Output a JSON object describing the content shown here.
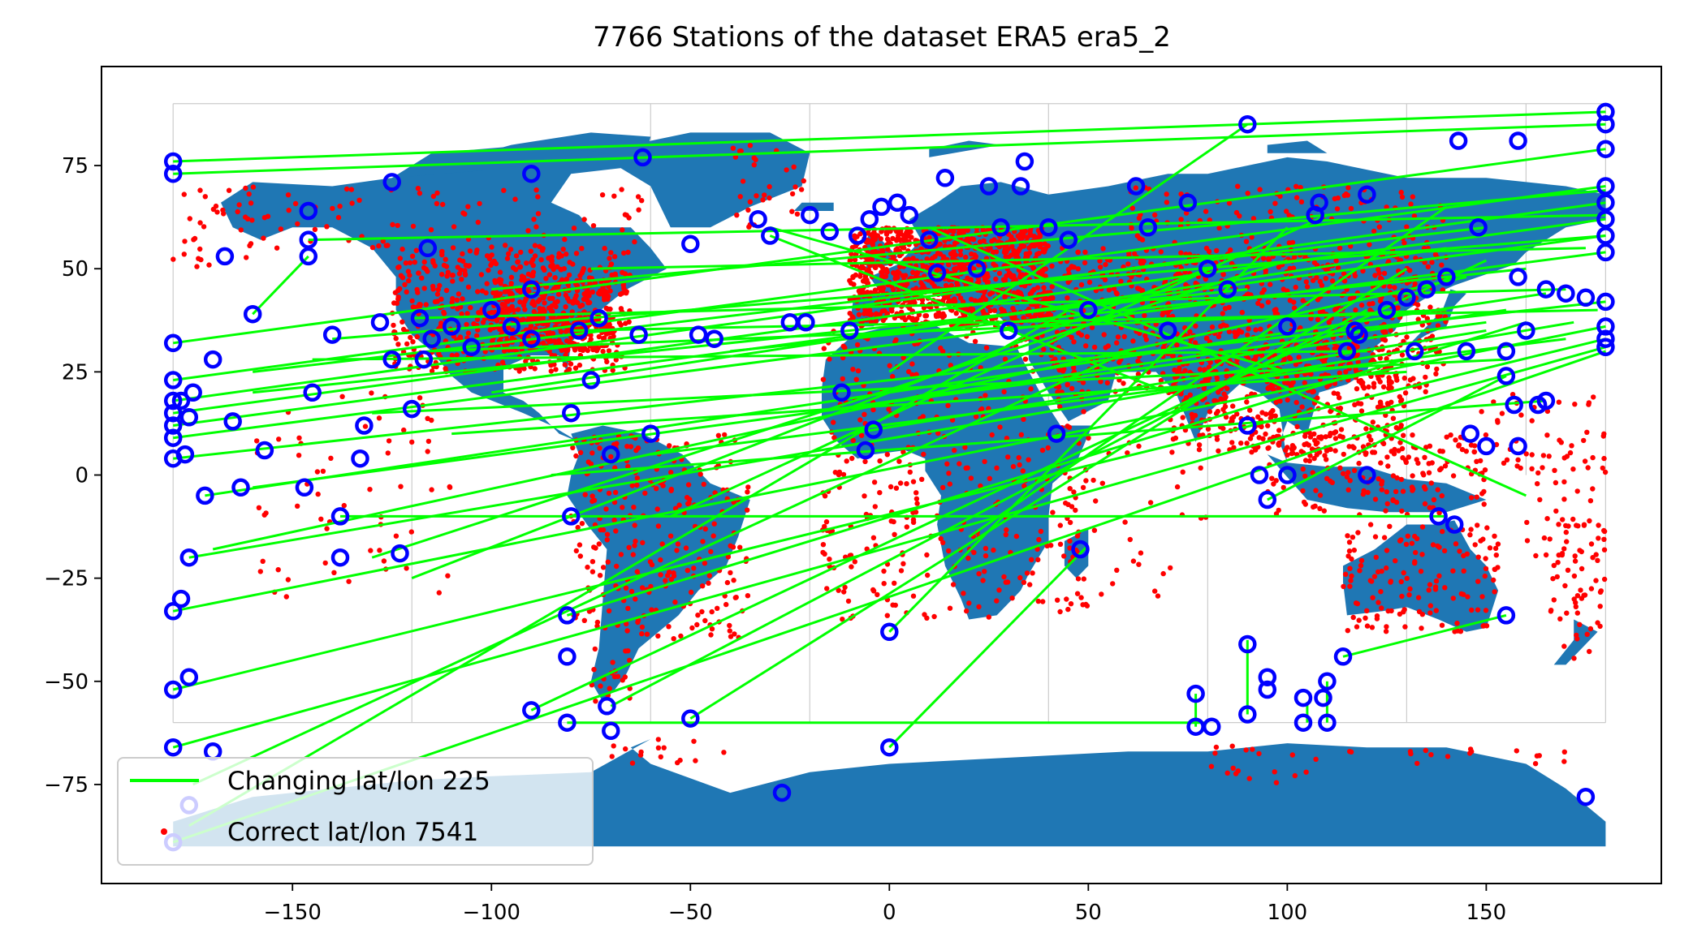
{
  "chart_data": {
    "type": "scatter",
    "title": "7766 Stations of the dataset ERA5 era5_2",
    "xlabel": "",
    "ylabel": "",
    "xlim": [
      -198,
      194
    ],
    "ylim": [
      -99,
      99
    ],
    "xticks": [
      -150,
      -100,
      -50,
      0,
      50,
      100,
      150
    ],
    "yticks": [
      -75,
      -50,
      -25,
      0,
      25,
      50,
      75
    ],
    "xtick_labels": [
      "−150",
      "−100",
      "−50",
      "0",
      "50",
      "100",
      "150"
    ],
    "ytick_labels": [
      "−75",
      "−50",
      "−25",
      "0",
      "25",
      "50",
      "75"
    ],
    "grid": false,
    "legend_position": "lower left",
    "legend": [
      {
        "label": "Changing lat/lon 225",
        "kind": "line",
        "color": "#00ff00"
      },
      {
        "label": "Correct lat/lon 7541",
        "kind": "point",
        "color": "#ff0000"
      }
    ],
    "colors": {
      "land": "#1f77b4",
      "correct_points": "#ff0000",
      "changing_lines": "#00ff00",
      "changing_markers": "#0000ff",
      "borders": "#cccccc"
    },
    "changing_segments": [
      [
        [
          -180,
          76
        ],
        [
          180,
          88
        ]
      ],
      [
        [
          -180,
          73
        ],
        [
          180,
          85
        ]
      ],
      [
        [
          -180,
          32
        ],
        [
          180,
          79
        ]
      ],
      [
        [
          -180,
          23
        ],
        [
          180,
          70
        ]
      ],
      [
        [
          -180,
          18
        ],
        [
          180,
          66
        ]
      ],
      [
        [
          -180,
          15
        ],
        [
          180,
          62
        ]
      ],
      [
        [
          -180,
          12
        ],
        [
          180,
          58
        ]
      ],
      [
        [
          -180,
          9
        ],
        [
          180,
          54
        ]
      ],
      [
        [
          -180,
          4
        ],
        [
          180,
          42
        ]
      ],
      [
        [
          -180,
          -33
        ],
        [
          180,
          36
        ]
      ],
      [
        [
          -180,
          -52
        ],
        [
          180,
          33
        ]
      ],
      [
        [
          -180,
          -66
        ],
        [
          180,
          31
        ]
      ],
      [
        [
          -180,
          -89
        ],
        [
          180,
          30
        ]
      ],
      [
        [
          -176,
          -20
        ],
        [
          172,
          37
        ]
      ],
      [
        [
          -172,
          -5
        ],
        [
          165,
          44
        ]
      ],
      [
        [
          -146,
          57
        ],
        [
          180,
          63
        ]
      ],
      [
        [
          -146,
          53
        ],
        [
          -160,
          39
        ]
      ],
      [
        [
          -138,
          -10
        ],
        [
          140,
          -10
        ]
      ],
      [
        [
          -81,
          -60
        ],
        [
          80,
          -60
        ]
      ],
      [
        [
          -90,
          -57
        ],
        [
          150,
          52
        ]
      ],
      [
        [
          0,
          -66
        ],
        [
          50,
          -17
        ]
      ],
      [
        [
          0,
          -38
        ],
        [
          100,
          60
        ]
      ],
      [
        [
          -100,
          45
        ],
        [
          180,
          69
        ]
      ],
      [
        [
          -160,
          25
        ],
        [
          150,
          60
        ]
      ],
      [
        [
          -120,
          38
        ],
        [
          170,
          45
        ]
      ],
      [
        [
          -80,
          35
        ],
        [
          178,
          40
        ]
      ],
      [
        [
          -130,
          15
        ],
        [
          155,
          28
        ]
      ],
      [
        [
          -160,
          -3
        ],
        [
          150,
          37
        ]
      ],
      [
        [
          -170,
          -18
        ],
        [
          145,
          48
        ]
      ],
      [
        [
          -130,
          -20
        ],
        [
          100,
          52
        ]
      ],
      [
        [
          -81,
          -34
        ],
        [
          160,
          37
        ]
      ],
      [
        [
          -70,
          -56
        ],
        [
          120,
          40
        ]
      ],
      [
        [
          -50,
          -59
        ],
        [
          130,
          50
        ]
      ],
      [
        [
          -60,
          5
        ],
        [
          170,
          33
        ]
      ],
      [
        [
          -30,
          58
        ],
        [
          70,
          20
        ]
      ],
      [
        [
          -100,
          20
        ],
        [
          140,
          55
        ]
      ],
      [
        [
          -40,
          30
        ],
        [
          160,
          50
        ]
      ],
      [
        [
          -145,
          28
        ],
        [
          120,
          30
        ]
      ],
      [
        [
          -110,
          10
        ],
        [
          130,
          25
        ]
      ],
      [
        [
          -55,
          -10
        ],
        [
          110,
          63
        ]
      ],
      [
        [
          0,
          25
        ],
        [
          90,
          85
        ]
      ],
      [
        [
          20,
          -15
        ],
        [
          140,
          65
        ]
      ],
      [
        [
          -85,
          0
        ],
        [
          165,
          18
        ]
      ],
      [
        [
          -120,
          -25
        ],
        [
          80,
          50
        ]
      ],
      [
        [
          -140,
          33
        ],
        [
          180,
          58
        ]
      ],
      [
        [
          -160,
          20
        ],
        [
          90,
          45
        ]
      ],
      [
        [
          -20,
          15
        ],
        [
          155,
          40
        ]
      ],
      [
        [
          10,
          60
        ],
        [
          160,
          -5
        ]
      ],
      [
        [
          -115,
          30
        ],
        [
          140,
          40
        ]
      ],
      [
        [
          -175,
          -75
        ],
        [
          60,
          30
        ]
      ],
      [
        [
          -176,
          -85
        ],
        [
          45,
          40
        ]
      ],
      [
        [
          114,
          -44
        ],
        [
          155,
          -34
        ]
      ],
      [
        [
          95,
          -6
        ],
        [
          155,
          24
        ]
      ],
      [
        [
          77,
          -53
        ],
        [
          77,
          -61
        ]
      ],
      [
        [
          90,
          -40
        ],
        [
          90,
          -58
        ]
      ],
      [
        [
          105,
          -55
        ],
        [
          105,
          -60
        ]
      ],
      [
        [
          110,
          -50
        ],
        [
          110,
          -60
        ]
      ],
      [
        [
          -30,
          60
        ],
        [
          100,
          25
        ]
      ],
      [
        [
          -75,
          50
        ],
        [
          175,
          55
        ]
      ],
      [
        [
          -10,
          10
        ],
        [
          150,
          35
        ]
      ]
    ],
    "changing_markers": [
      [
        -180,
        76
      ],
      [
        -180,
        73
      ],
      [
        -180,
        32
      ],
      [
        -180,
        23
      ],
      [
        -180,
        18
      ],
      [
        -180,
        15
      ],
      [
        -180,
        12
      ],
      [
        -180,
        9
      ],
      [
        -180,
        4
      ],
      [
        -180,
        -33
      ],
      [
        -180,
        -52
      ],
      [
        -180,
        -66
      ],
      [
        -180,
        -89
      ],
      [
        -176,
        -20
      ],
      [
        -172,
        -5
      ],
      [
        -178,
        -30
      ],
      [
        -176,
        -49
      ],
      [
        -176,
        -80
      ],
      [
        -170,
        -67
      ],
      [
        -146,
        64
      ],
      [
        -146,
        57
      ],
      [
        -146,
        53
      ],
      [
        -160,
        39
      ],
      [
        -167,
        53
      ],
      [
        -165,
        13
      ],
      [
        -157,
        6
      ],
      [
        -163,
        -3
      ],
      [
        -147,
        -3
      ],
      [
        -138,
        -10
      ],
      [
        -138,
        -20
      ],
      [
        -123,
        -19
      ],
      [
        -133,
        4
      ],
      [
        -132,
        12
      ],
      [
        -125,
        71
      ],
      [
        -140,
        34
      ],
      [
        -128,
        37
      ],
      [
        -118,
        38
      ],
      [
        -110,
        36
      ],
      [
        -105,
        31
      ],
      [
        -95,
        36
      ],
      [
        -90,
        33
      ],
      [
        -78,
        35
      ],
      [
        -73,
        38
      ],
      [
        -63,
        34
      ],
      [
        -116,
        55
      ],
      [
        -90,
        73
      ],
      [
        -62,
        77
      ],
      [
        -50,
        56
      ],
      [
        -48,
        34
      ],
      [
        -44,
        33
      ],
      [
        -33,
        62
      ],
      [
        -30,
        58
      ],
      [
        -25,
        37
      ],
      [
        -21,
        37
      ],
      [
        -20,
        63
      ],
      [
        -12,
        20
      ],
      [
        -6,
        6
      ],
      [
        -4,
        11
      ],
      [
        -10,
        35
      ],
      [
        -15,
        59
      ],
      [
        -8,
        58
      ],
      [
        -5,
        62
      ],
      [
        -2,
        65
      ],
      [
        2,
        66
      ],
      [
        5,
        63
      ],
      [
        10,
        57
      ],
      [
        14,
        72
      ],
      [
        12,
        49
      ],
      [
        25,
        70
      ],
      [
        22,
        50
      ],
      [
        34,
        76
      ],
      [
        33,
        70
      ],
      [
        28,
        60
      ],
      [
        30,
        35
      ],
      [
        40,
        60
      ],
      [
        45,
        57
      ],
      [
        50,
        40
      ],
      [
        48,
        -18
      ],
      [
        42,
        10
      ],
      [
        0,
        -38
      ],
      [
        0,
        -66
      ],
      [
        -27,
        -77
      ],
      [
        -81,
        -60
      ],
      [
        -70,
        -62
      ],
      [
        -71,
        -56
      ],
      [
        -81,
        -34
      ],
      [
        -81,
        -44
      ],
      [
        -90,
        -57
      ],
      [
        -50,
        -59
      ],
      [
        -70,
        5
      ],
      [
        -60,
        10
      ],
      [
        -80,
        -10
      ],
      [
        -80,
        15
      ],
      [
        -75,
        23
      ],
      [
        62,
        70
      ],
      [
        70,
        35
      ],
      [
        65,
        60
      ],
      [
        77,
        -53
      ],
      [
        77,
        -61
      ],
      [
        81,
        -61
      ],
      [
        90,
        -41
      ],
      [
        90,
        -58
      ],
      [
        95,
        -49
      ],
      [
        95,
        -52
      ],
      [
        104,
        -54
      ],
      [
        104,
        -60
      ],
      [
        110,
        -50
      ],
      [
        110,
        -60
      ],
      [
        109,
        -54
      ],
      [
        90,
        85
      ],
      [
        95,
        -6
      ],
      [
        90,
        12
      ],
      [
        93,
        0
      ],
      [
        100,
        0
      ],
      [
        107,
        63
      ],
      [
        108,
        66
      ],
      [
        120,
        68
      ],
      [
        120,
        0
      ],
      [
        114,
        -44
      ],
      [
        138,
        -10
      ],
      [
        142,
        -12
      ],
      [
        143,
        81
      ],
      [
        158,
        81
      ],
      [
        148,
        60
      ],
      [
        155,
        30
      ],
      [
        160,
        35
      ],
      [
        165,
        45
      ],
      [
        170,
        44
      ],
      [
        175,
        43
      ],
      [
        180,
        88
      ],
      [
        180,
        85
      ],
      [
        180,
        79
      ],
      [
        180,
        70
      ],
      [
        180,
        66
      ],
      [
        180,
        62
      ],
      [
        180,
        58
      ],
      [
        180,
        54
      ],
      [
        180,
        42
      ],
      [
        180,
        36
      ],
      [
        180,
        33
      ],
      [
        180,
        31
      ],
      [
        175,
        -78
      ],
      [
        155,
        -34
      ],
      [
        155,
        24
      ],
      [
        157,
        17
      ],
      [
        163,
        17
      ],
      [
        165,
        18
      ],
      [
        146,
        10
      ],
      [
        150,
        7
      ],
      [
        158,
        7
      ],
      [
        118,
        34
      ],
      [
        125,
        40
      ],
      [
        130,
        43
      ],
      [
        135,
        45
      ],
      [
        140,
        48
      ],
      [
        145,
        30
      ],
      [
        158,
        48
      ],
      [
        132,
        30
      ],
      [
        115,
        30
      ],
      [
        100,
        36
      ],
      [
        117,
        35
      ],
      [
        85,
        45
      ],
      [
        80,
        50
      ],
      [
        75,
        66
      ],
      [
        -100,
        40
      ],
      [
        -90,
        45
      ],
      [
        -115,
        33
      ],
      [
        -117,
        28
      ],
      [
        -125,
        28
      ],
      [
        -120,
        16
      ],
      [
        -145,
        20
      ],
      [
        -170,
        28
      ],
      [
        -175,
        20
      ],
      [
        -178,
        18
      ],
      [
        -176,
        14
      ],
      [
        -177,
        5
      ]
    ],
    "correct_points_summary": "7541 red station points plotted across land and islands"
  }
}
